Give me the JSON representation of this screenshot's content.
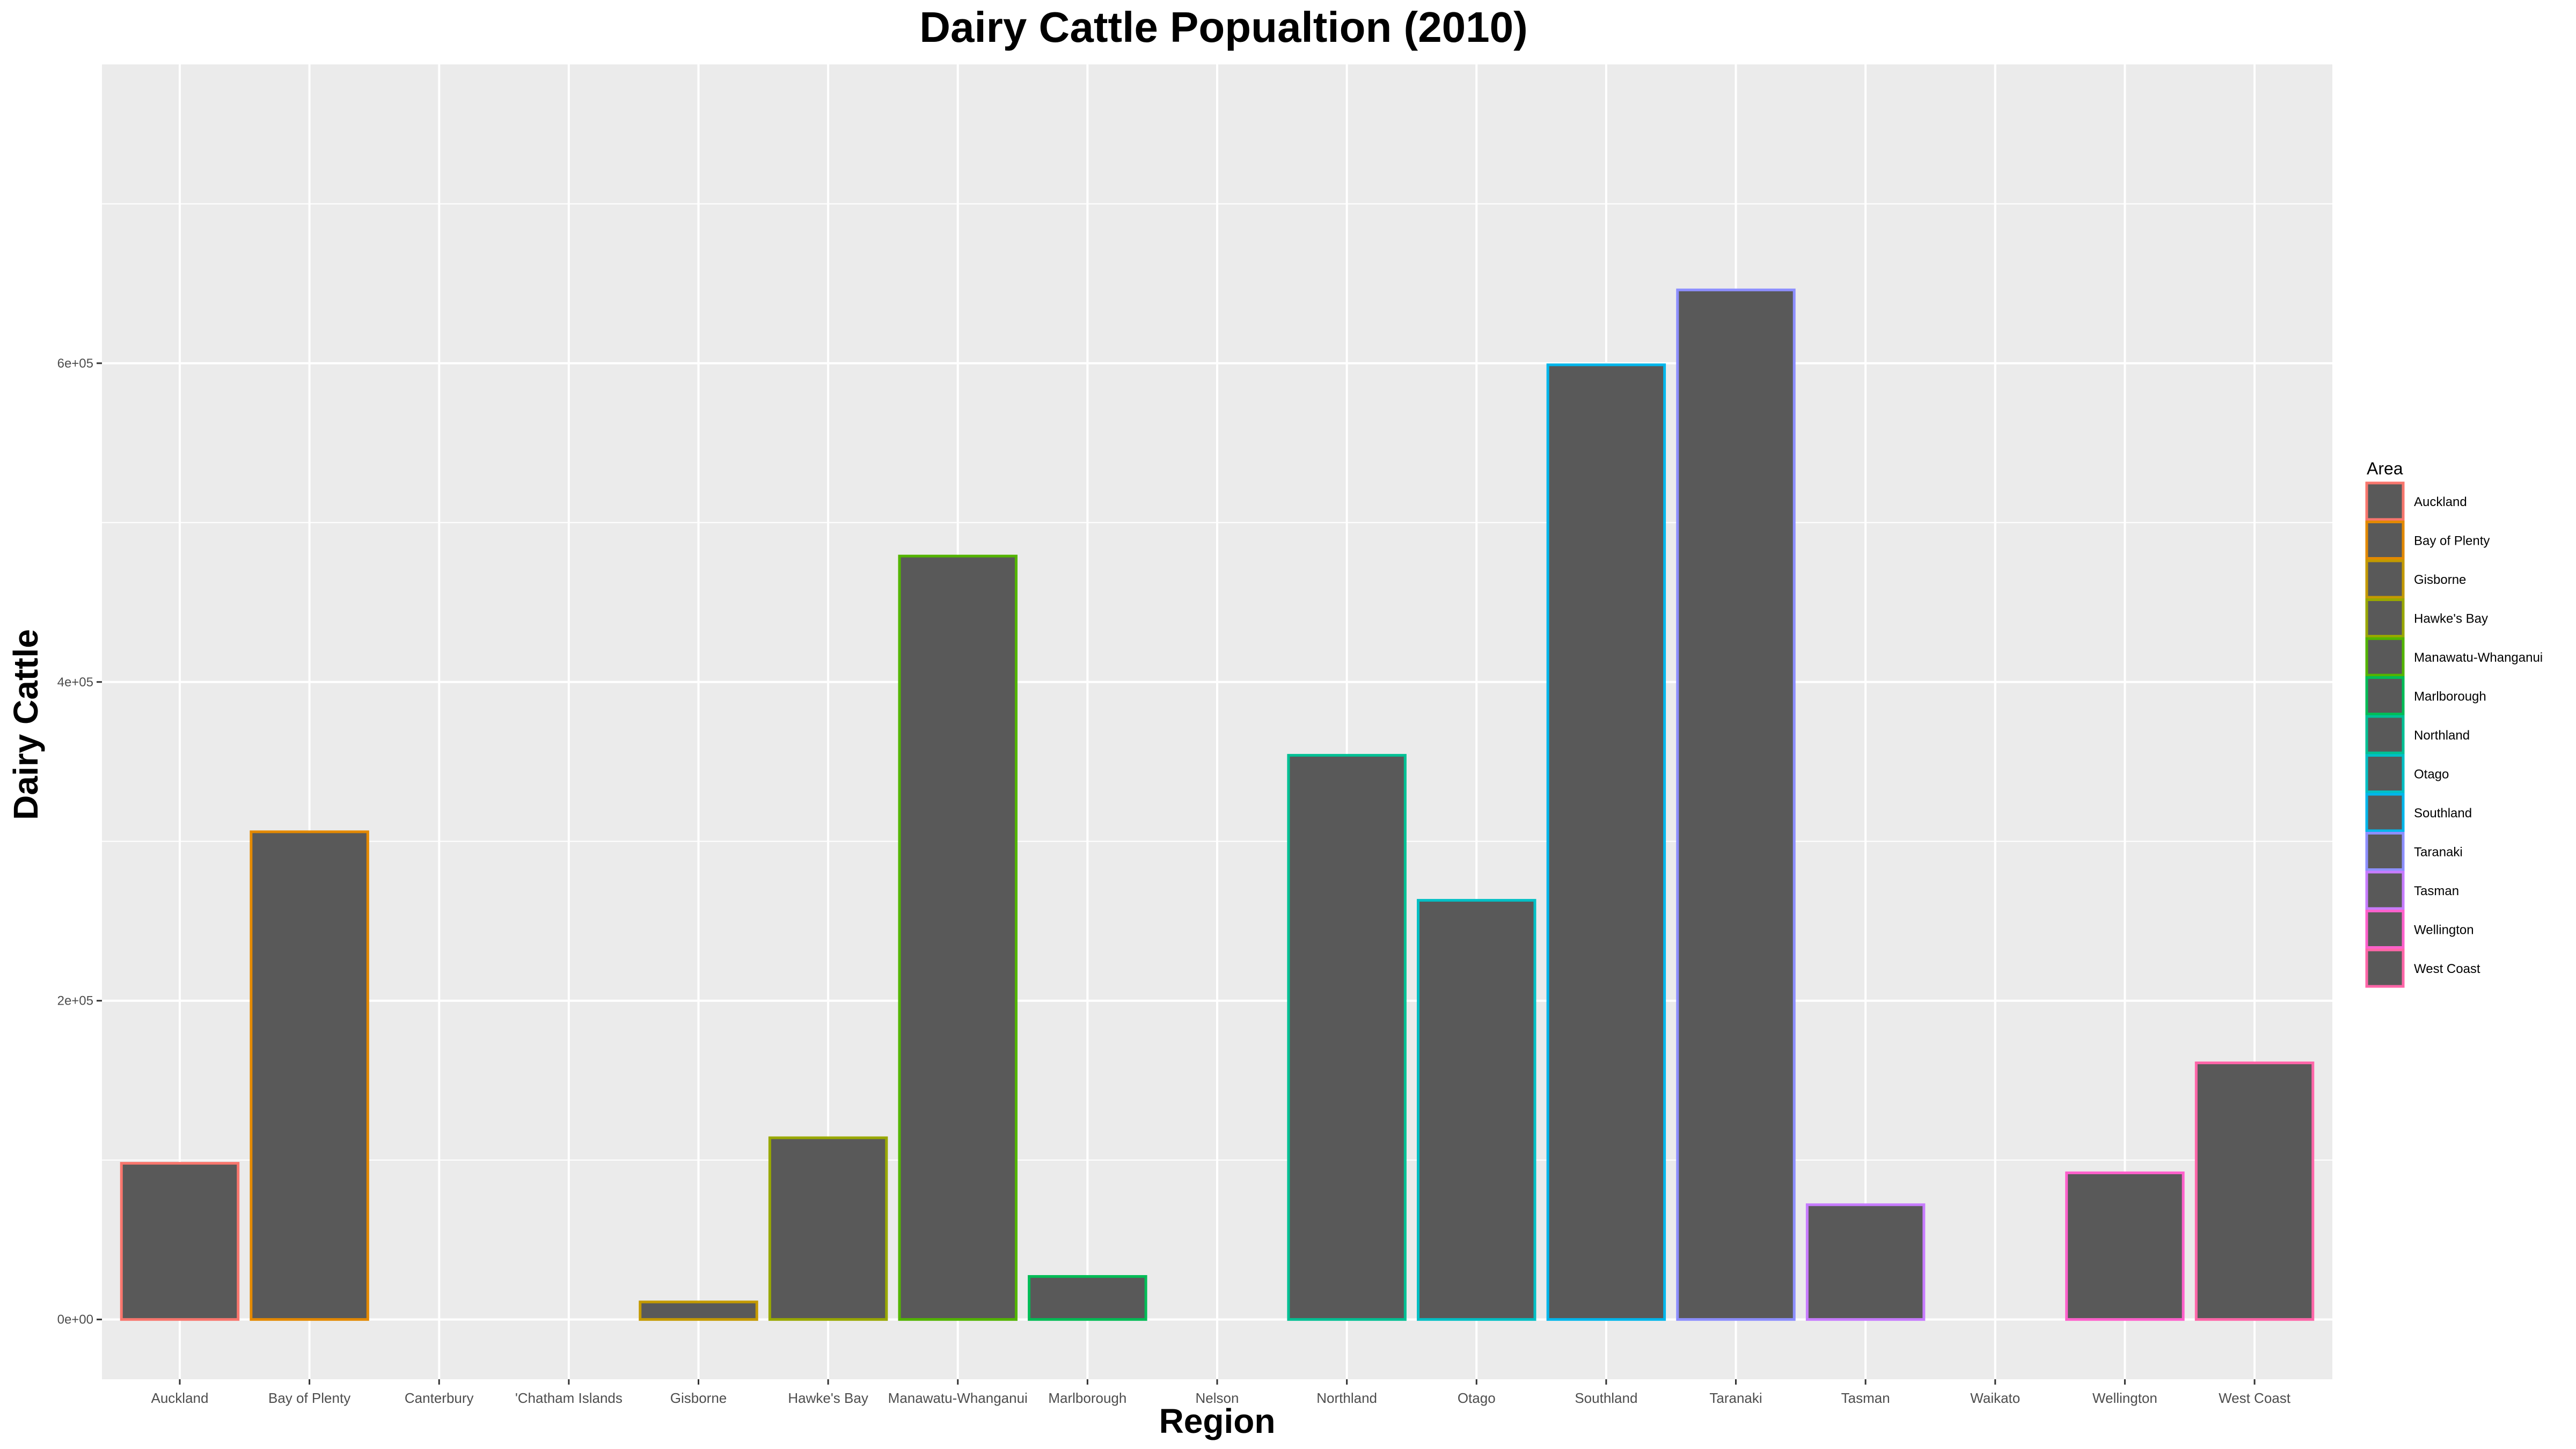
{
  "chart_data": {
    "type": "bar",
    "title": "Dairy Cattle Popualtion (2010)",
    "xlabel": "Region",
    "ylabel": "Dairy Cattle",
    "categories": [
      "Auckland",
      "Bay of Plenty",
      "Canterbury",
      "Chatham Islands",
      "Gisborne",
      "Hawke's Bay",
      "Manawatu-Whanganui",
      "Marlborough",
      "Nelson",
      "Northland",
      "Otago",
      "Southland",
      "Taranaki",
      "Tasman",
      "Waikato",
      "Wellington",
      "West Coast"
    ],
    "category_display": [
      "Auckland",
      "Bay of Plenty",
      "Canterbury",
      "'Chatham Islands",
      "Gisborne",
      "Hawke's Bay",
      "Manawatu-Whanganui",
      "Marlborough",
      "Nelson",
      "Northland",
      "Otago",
      "Southland",
      "Taranaki",
      "Tasman",
      "Waikato",
      "Wellington",
      "West Coast"
    ],
    "values": [
      98000,
      306000,
      null,
      null,
      11000,
      114000,
      479000,
      27000,
      null,
      354000,
      263000,
      599000,
      646000,
      72000,
      null,
      92000,
      161000
    ],
    "ylim": [
      -37500,
      787500
    ],
    "yticks": [
      0,
      200000,
      400000,
      600000
    ],
    "ytick_labels": [
      "0e+00",
      "2e+05",
      "4e+05",
      "6e+05"
    ],
    "grid": true,
    "legend": {
      "title": "Area",
      "position": "right",
      "entries": [
        {
          "label": "Auckland",
          "color": "#F8766D"
        },
        {
          "label": "Bay of Plenty",
          "color": "#E38900"
        },
        {
          "label": "Gisborne",
          "color": "#C49A00"
        },
        {
          "label": "Hawke's Bay",
          "color": "#99A800"
        },
        {
          "label": "Manawatu-Whanganui",
          "color": "#53B400"
        },
        {
          "label": "Marlborough",
          "color": "#00BC56"
        },
        {
          "label": "Northland",
          "color": "#00C094"
        },
        {
          "label": "Otago",
          "color": "#00BFC4"
        },
        {
          "label": "Southland",
          "color": "#00B6EB"
        },
        {
          "label": "Taranaki",
          "color": "#8D8FFF"
        },
        {
          "label": "Tasman",
          "color": "#C77CFF"
        },
        {
          "label": "Wellington",
          "color": "#FF61CC"
        },
        {
          "label": "West Coast",
          "color": "#FF66A8"
        }
      ]
    },
    "bar_fill": "#595959",
    "panel_background": "#EBEBEB"
  }
}
